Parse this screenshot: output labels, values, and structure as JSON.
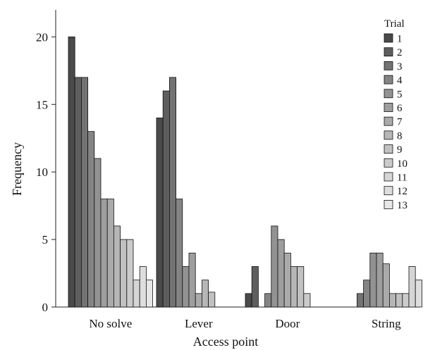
{
  "chart_data": {
    "type": "bar",
    "xlabel": "Access point",
    "ylabel": "Frequency",
    "ylim": [
      0,
      22
    ],
    "yticks": [
      0,
      5,
      10,
      15,
      20
    ],
    "grid": false,
    "legend_position": "right",
    "legend_title": "Trial",
    "categories": [
      "No solve",
      "Lever",
      "Door",
      "String"
    ],
    "series": [
      {
        "name": "1",
        "color": "#4a4a4a",
        "values": [
          20,
          14,
          1,
          0
        ]
      },
      {
        "name": "2",
        "color": "#5e5e5e",
        "values": [
          17,
          16,
          3,
          0
        ]
      },
      {
        "name": "3",
        "color": "#737373",
        "values": [
          17,
          17,
          0,
          1
        ]
      },
      {
        "name": "4",
        "color": "#848484",
        "values": [
          13,
          8,
          1,
          2
        ]
      },
      {
        "name": "5",
        "color": "#929292",
        "values": [
          11,
          3,
          6,
          4
        ]
      },
      {
        "name": "6",
        "color": "#9e9e9e",
        "values": [
          8,
          4,
          5,
          4
        ]
      },
      {
        "name": "7",
        "color": "#aaaaaa",
        "values": [
          8,
          1,
          4,
          3.2
        ]
      },
      {
        "name": "8",
        "color": "#b6b6b6",
        "values": [
          6,
          2,
          3,
          1
        ]
      },
      {
        "name": "9",
        "color": "#c1c1c1",
        "values": [
          5,
          1.1,
          3,
          1
        ]
      },
      {
        "name": "10",
        "color": "#cbcbcb",
        "values": [
          5,
          0,
          1,
          1
        ]
      },
      {
        "name": "11",
        "color": "#d5d5d5",
        "values": [
          2,
          0,
          0,
          3
        ]
      },
      {
        "name": "12",
        "color": "#dedede",
        "values": [
          3,
          0,
          0,
          2
        ]
      },
      {
        "name": "13",
        "color": "#e7e7e7",
        "values": [
          2,
          0,
          0,
          0
        ]
      }
    ]
  }
}
